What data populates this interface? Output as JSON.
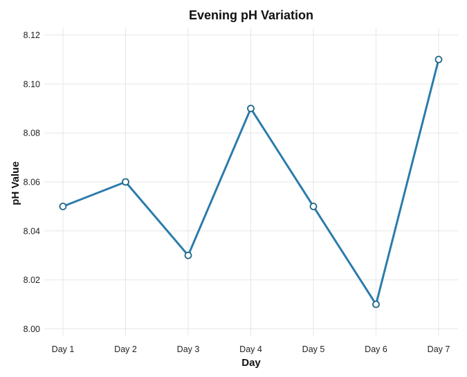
{
  "chart_data": {
    "type": "line",
    "title": "Evening pH Variation",
    "xlabel": "Day",
    "ylabel": "pH Value",
    "categories": [
      "Day 1",
      "Day 2",
      "Day 3",
      "Day 4",
      "Day 5",
      "Day 6",
      "Day 7"
    ],
    "series": [
      {
        "values": [
          8.05,
          8.06,
          8.03,
          8.09,
          8.05,
          8.01,
          8.11
        ]
      }
    ],
    "yticks": [
      "8.00",
      "8.02",
      "8.04",
      "8.06",
      "8.08",
      "8.10",
      "8.12"
    ],
    "ylim": [
      7.997,
      8.123
    ],
    "grid": true,
    "legend": "none",
    "colors": {
      "line": "#2b7bab",
      "point_stroke": "#1f6689",
      "point_fill": "#ffffff"
    }
  }
}
